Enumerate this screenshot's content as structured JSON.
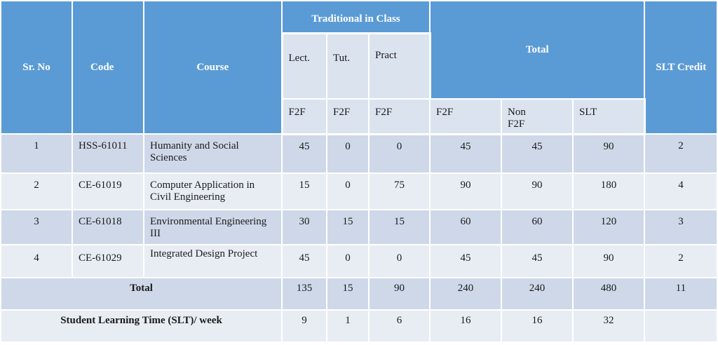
{
  "header": {
    "sr_no": "Sr. No",
    "code": "Code",
    "course": "Course",
    "traditional": "Traditional in Class",
    "lect": "Lect.",
    "tut": "Tut.",
    "pract": "Pract",
    "total": "Total",
    "slt_credit": "SLT Credit",
    "f2f_lect": "F2F",
    "f2f_tut": "F2F",
    "f2f_pract": "F2F",
    "f2f_total": "F2F",
    "non_f2f": "Non F2F",
    "slt": "SLT"
  },
  "rows": [
    {
      "sr": "1",
      "code": "HSS-61011",
      "course": "Humanity and Social Sciences",
      "lect": "45",
      "tut": "0",
      "pract": "0",
      "f2f": "45",
      "nonf2f": "45",
      "slt": "90",
      "credit": "2"
    },
    {
      "sr": "2",
      "code": "CE-61019",
      "course": "Computer Application in Civil Engineering",
      "lect": "15",
      "tut": "0",
      "pract": "75",
      "f2f": "90",
      "nonf2f": "90",
      "slt": "180",
      "credit": "4"
    },
    {
      "sr": "3",
      "code": "CE-61018",
      "course": "Environmental Engineering III",
      "lect": "30",
      "tut": "15",
      "pract": "15",
      "f2f": "60",
      "nonf2f": "60",
      "slt": "120",
      "credit": "3"
    },
    {
      "sr": "4",
      "code": "CE-61029",
      "course": "Integrated Design Project",
      "lect": "45",
      "tut": "0",
      "pract": "0",
      "f2f": "45",
      "nonf2f": "45",
      "slt": "90",
      "credit": "2"
    }
  ],
  "total_row": {
    "label": "Total",
    "lect": "135",
    "tut": "15",
    "pract": "90",
    "f2f": "240",
    "nonf2f": "240",
    "slt": "480",
    "credit": "11"
  },
  "slt_row": {
    "label": "Student Learning Time (SLT)/ week",
    "lect": "9",
    "tut": "1",
    "pract": "6",
    "f2f": "16",
    "nonf2f": "16",
    "slt": "32",
    "credit": ""
  }
}
